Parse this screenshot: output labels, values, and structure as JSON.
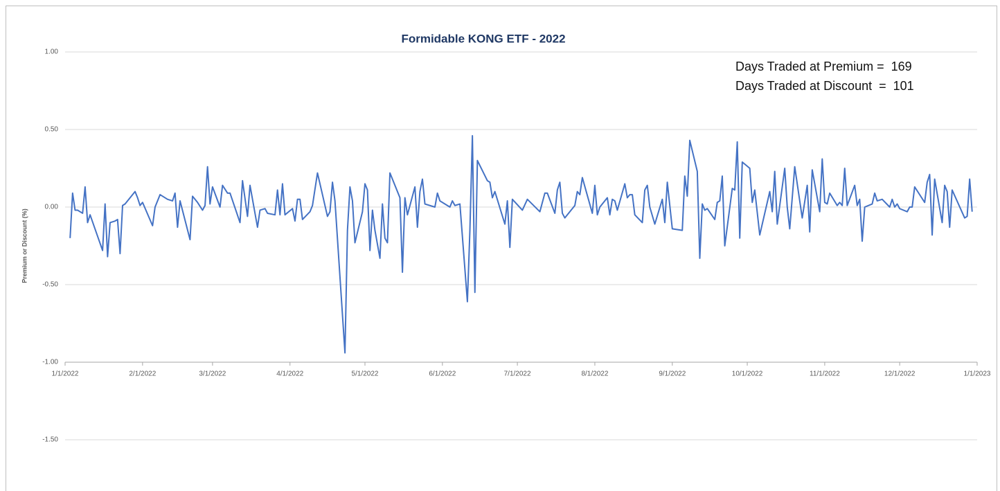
{
  "chart_data": {
    "type": "line",
    "title": "Formidable KONG ETF - 2022",
    "y_label": "Premium or Discount (%)",
    "annotations": [
      "Days Traded at Premium =  169",
      "Days Traded at Discount  =  101"
    ],
    "xlim": [
      "2022-01-01",
      "2023-01-01"
    ],
    "xticks": [
      {
        "value": "2022-01-01",
        "label": "1/1/2022"
      },
      {
        "value": "2022-02-01",
        "label": "2/1/2022"
      },
      {
        "value": "2022-03-01",
        "label": "3/1/2022"
      },
      {
        "value": "2022-04-01",
        "label": "4/1/2022"
      },
      {
        "value": "2022-05-01",
        "label": "5/1/2022"
      },
      {
        "value": "2022-06-01",
        "label": "6/1/2022"
      },
      {
        "value": "2022-07-01",
        "label": "7/1/2022"
      },
      {
        "value": "2022-08-01",
        "label": "8/1/2022"
      },
      {
        "value": "2022-09-01",
        "label": "9/1/2022"
      },
      {
        "value": "2022-10-01",
        "label": "10/1/2022"
      },
      {
        "value": "2022-11-01",
        "label": "11/1/2022"
      },
      {
        "value": "2022-12-01",
        "label": "12/1/2022"
      },
      {
        "value": "2023-01-01",
        "label": "1/1/2023"
      }
    ],
    "ylim": [
      -1.5,
      1
    ],
    "yticks": [
      {
        "value": -1.5,
        "label": "-1.50"
      },
      {
        "value": -1,
        "label": "-1.00"
      },
      {
        "value": -0.5,
        "label": "-0.50"
      },
      {
        "value": 0,
        "label": "0.00"
      },
      {
        "value": 0.5,
        "label": "0.50"
      },
      {
        "value": 1,
        "label": "1.00"
      }
    ],
    "x_axis_at": -1,
    "grid": true,
    "x": [
      "2022-01-03",
      "2022-01-04",
      "2022-01-05",
      "2022-01-06",
      "2022-01-08",
      "2022-01-09",
      "2022-01-10",
      "2022-01-11",
      "2022-01-16",
      "2022-01-17",
      "2022-01-18",
      "2022-01-19",
      "2022-01-21",
      "2022-01-22",
      "2022-01-23",
      "2022-01-24",
      "2022-01-25",
      "2022-01-29",
      "2022-01-30",
      "2022-01-31",
      "2022-02-01",
      "2022-02-05",
      "2022-02-06",
      "2022-02-08",
      "2022-02-11",
      "2022-02-13",
      "2022-02-14",
      "2022-02-15",
      "2022-02-16",
      "2022-02-20",
      "2022-02-21",
      "2022-02-23",
      "2022-02-25",
      "2022-02-26",
      "2022-02-27",
      "2022-02-28",
      "2022-03-01",
      "2022-03-04",
      "2022-03-05",
      "2022-03-07",
      "2022-03-08",
      "2022-03-12",
      "2022-03-13",
      "2022-03-15",
      "2022-03-16",
      "2022-03-19",
      "2022-03-20",
      "2022-03-22",
      "2022-03-23",
      "2022-03-26",
      "2022-03-27",
      "2022-03-28",
      "2022-03-29",
      "2022-03-30",
      "2022-04-02",
      "2022-04-03",
      "2022-04-04",
      "2022-04-05",
      "2022-04-06",
      "2022-04-09",
      "2022-04-10",
      "2022-04-12",
      "2022-04-16",
      "2022-04-17",
      "2022-04-18",
      "2022-04-19",
      "2022-04-23",
      "2022-04-24",
      "2022-04-25",
      "2022-04-26",
      "2022-04-27",
      "2022-04-30",
      "2022-05-01",
      "2022-05-02",
      "2022-05-03",
      "2022-05-04",
      "2022-05-05",
      "2022-05-07",
      "2022-05-08",
      "2022-05-09",
      "2022-05-10",
      "2022-05-11",
      "2022-05-15",
      "2022-05-16",
      "2022-05-17",
      "2022-05-18",
      "2022-05-21",
      "2022-05-22",
      "2022-05-23",
      "2022-05-24",
      "2022-05-25",
      "2022-05-29",
      "2022-05-30",
      "2022-05-31",
      "2022-06-04",
      "2022-06-05",
      "2022-06-06",
      "2022-06-08",
      "2022-06-11",
      "2022-06-12",
      "2022-06-13",
      "2022-06-14",
      "2022-06-15",
      "2022-06-19",
      "2022-06-20",
      "2022-06-21",
      "2022-06-22",
      "2022-06-26",
      "2022-06-27",
      "2022-06-28",
      "2022-06-29",
      "2022-07-03",
      "2022-07-05",
      "2022-07-10",
      "2022-07-12",
      "2022-07-13",
      "2022-07-16",
      "2022-07-17",
      "2022-07-18",
      "2022-07-19",
      "2022-07-20",
      "2022-07-24",
      "2022-07-25",
      "2022-07-26",
      "2022-07-27",
      "2022-07-31",
      "2022-08-01",
      "2022-08-02",
      "2022-08-03",
      "2022-08-06",
      "2022-08-07",
      "2022-08-08",
      "2022-08-09",
      "2022-08-10",
      "2022-08-13",
      "2022-08-14",
      "2022-08-15",
      "2022-08-16",
      "2022-08-17",
      "2022-08-20",
      "2022-08-21",
      "2022-08-22",
      "2022-08-23",
      "2022-08-25",
      "2022-08-28",
      "2022-08-29",
      "2022-08-30",
      "2022-09-01",
      "2022-09-05",
      "2022-09-06",
      "2022-09-07",
      "2022-09-08",
      "2022-09-11",
      "2022-09-12",
      "2022-09-13",
      "2022-09-14",
      "2022-09-15",
      "2022-09-18",
      "2022-09-19",
      "2022-09-20",
      "2022-09-21",
      "2022-09-22",
      "2022-09-25",
      "2022-09-26",
      "2022-09-27",
      "2022-09-28",
      "2022-09-29",
      "2022-10-02",
      "2022-10-03",
      "2022-10-04",
      "2022-10-06",
      "2022-10-10",
      "2022-10-11",
      "2022-10-12",
      "2022-10-13",
      "2022-10-16",
      "2022-10-17",
      "2022-10-18",
      "2022-10-20",
      "2022-10-23",
      "2022-10-25",
      "2022-10-26",
      "2022-10-27",
      "2022-10-30",
      "2022-10-31",
      "2022-11-01",
      "2022-11-02",
      "2022-11-03",
      "2022-11-06",
      "2022-11-07",
      "2022-11-08",
      "2022-11-09",
      "2022-11-10",
      "2022-11-13",
      "2022-11-14",
      "2022-11-15",
      "2022-11-16",
      "2022-11-17",
      "2022-11-20",
      "2022-11-21",
      "2022-11-22",
      "2022-11-24",
      "2022-11-27",
      "2022-11-28",
      "2022-11-29",
      "2022-11-30",
      "2022-12-01",
      "2022-12-04",
      "2022-12-05",
      "2022-12-06",
      "2022-12-07",
      "2022-12-11",
      "2022-12-12",
      "2022-12-13",
      "2022-12-14",
      "2022-12-15",
      "2022-12-18",
      "2022-12-19",
      "2022-12-20",
      "2022-12-21",
      "2022-12-22",
      "2022-12-27",
      "2022-12-28",
      "2022-12-29",
      "2022-12-30"
    ],
    "series": [
      {
        "color": "#4472c4",
        "values": [
          -0.2,
          0.09,
          -0.02,
          -0.02,
          -0.04,
          0.13,
          -0.1,
          -0.05,
          -0.28,
          0.02,
          -0.32,
          -0.1,
          -0.09,
          -0.08,
          -0.3,
          0.01,
          0.02,
          0.1,
          0.06,
          0.01,
          0.03,
          -0.12,
          0.0,
          0.08,
          0.05,
          0.04,
          0.09,
          -0.13,
          0.04,
          -0.21,
          0.07,
          0.03,
          -0.02,
          0.01,
          0.26,
          0.02,
          0.13,
          0.0,
          0.14,
          0.09,
          0.09,
          -0.1,
          0.17,
          -0.06,
          0.14,
          -0.13,
          -0.02,
          -0.01,
          -0.04,
          -0.05,
          0.11,
          -0.05,
          0.15,
          -0.05,
          -0.01,
          -0.09,
          0.05,
          0.05,
          -0.08,
          -0.03,
          0.01,
          0.22,
          -0.06,
          -0.03,
          0.16,
          0.04,
          -0.94,
          -0.15,
          0.13,
          0.04,
          -0.23,
          -0.03,
          0.15,
          0.11,
          -0.28,
          -0.02,
          -0.15,
          -0.33,
          0.02,
          -0.2,
          -0.23,
          0.22,
          0.06,
          -0.42,
          0.06,
          -0.05,
          0.13,
          -0.13,
          0.1,
          0.18,
          0.02,
          0.0,
          0.09,
          0.04,
          0.0,
          0.04,
          0.01,
          0.02,
          -0.61,
          -0.15,
          0.46,
          -0.55,
          0.3,
          0.17,
          0.16,
          0.06,
          0.1,
          -0.11,
          0.04,
          -0.26,
          0.05,
          -0.02,
          0.05,
          -0.03,
          0.09,
          0.09,
          -0.04,
          0.11,
          0.16,
          -0.04,
          -0.07,
          0.01,
          0.1,
          0.08,
          0.19,
          -0.04,
          0.14,
          -0.05,
          0.0,
          0.06,
          -0.05,
          0.05,
          0.04,
          -0.02,
          0.15,
          0.06,
          0.08,
          0.08,
          -0.05,
          -0.1,
          0.11,
          0.14,
          0.0,
          -0.11,
          0.05,
          -0.1,
          0.16,
          -0.14,
          -0.15,
          0.2,
          0.07,
          0.43,
          0.23,
          -0.33,
          0.02,
          -0.02,
          -0.01,
          -0.08,
          0.03,
          0.04,
          0.2,
          -0.25,
          0.12,
          0.11,
          0.42,
          -0.2,
          0.29,
          0.25,
          0.03,
          0.11,
          -0.18,
          0.1,
          -0.03,
          0.23,
          -0.11,
          0.25,
          0.0,
          -0.14,
          0.26,
          -0.07,
          0.14,
          -0.16,
          0.24,
          -0.03,
          0.31,
          0.03,
          0.02,
          0.09,
          0.01,
          0.03,
          0.01,
          0.25,
          0.01,
          0.14,
          0.01,
          0.05,
          -0.22,
          0.0,
          0.02,
          0.09,
          0.04,
          0.05,
          0.0,
          0.05,
          0.0,
          0.02,
          -0.01,
          -0.03,
          0.0,
          0.0,
          0.13,
          0.03,
          0.16,
          0.21,
          -0.18,
          0.18,
          -0.1,
          0.14,
          0.1,
          -0.13,
          0.11,
          -0.07,
          -0.06,
          0.18,
          -0.03
        ]
      }
    ]
  }
}
